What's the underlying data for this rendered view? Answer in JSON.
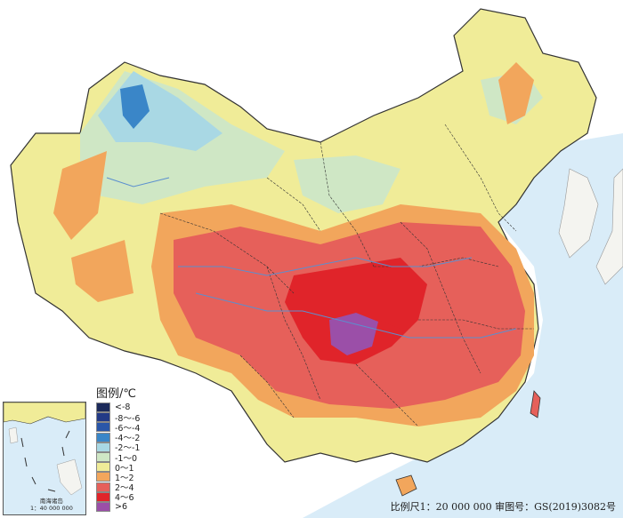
{
  "legend": {
    "title": "图例/℃",
    "items": [
      {
        "label": "<-8",
        "color": "#1c2a5a"
      },
      {
        "label": "-8～-6",
        "color": "#233a86"
      },
      {
        "label": "-6～-4",
        "color": "#2a56a8"
      },
      {
        "label": "-4～-2",
        "color": "#3a86c8"
      },
      {
        "label": "-2～-1",
        "color": "#a9d8e4"
      },
      {
        "label": "-1～0",
        "color": "#cfe7c5"
      },
      {
        "label": "0～1",
        "color": "#f0ec98"
      },
      {
        "label": "1～2",
        "color": "#f2a65c"
      },
      {
        "label": "2～4",
        "color": "#e6605a"
      },
      {
        "label": "4～6",
        "color": "#e0242a"
      },
      {
        "label": ">6",
        "color": "#9b4fa8"
      }
    ]
  },
  "inset": {
    "label_line1": "南海诸岛",
    "label_line2": "1：40 000 000"
  },
  "footer": {
    "scale_text": "比例尺1：20 000 000  审图号：GS(2019)3082号"
  },
  "colors": {
    "sea": "#d9ecf8",
    "land_outside": "#f4f4f0",
    "boundary": "#333333",
    "river": "#5b8fcf"
  }
}
